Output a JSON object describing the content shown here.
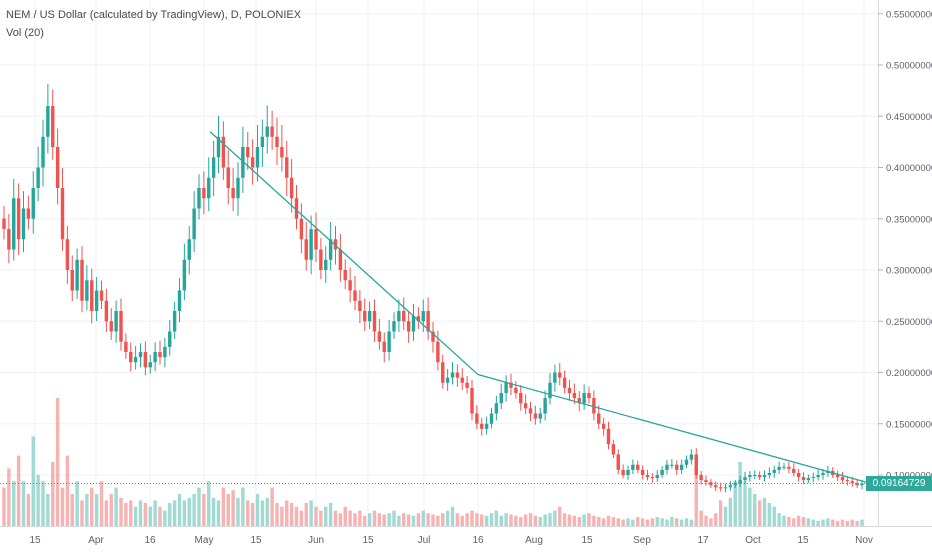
{
  "header": {
    "title": "NEM / US Dollar (calculated by TradingView), D, POLONIEX",
    "volume_label": "Vol (20)"
  },
  "price_tag": "0.09164729",
  "colors": {
    "up": "#26a69a",
    "down": "#ef5350",
    "trendline": "#26a69a",
    "grid": "#eef0f3",
    "axis_text": "#5d606b"
  },
  "chart_data": {
    "type": "candlestick",
    "x_axis_ticks": [
      "15",
      "Apr",
      "16",
      "May",
      "15",
      "Jun",
      "15",
      "Jul",
      "16",
      "Aug",
      "15",
      "Sep",
      "17",
      "Oct",
      "15",
      "Nov"
    ],
    "y_axis_ticks": [
      "0.55000000",
      "0.50000000",
      "0.45000000",
      "0.40000000",
      "0.35000000",
      "0.30000000",
      "0.25000000",
      "0.20000000",
      "0.15000000",
      "0.10000000"
    ],
    "ylim": [
      0.05,
      0.56
    ],
    "grid": true,
    "last_price": 0.09164729,
    "trendlines": [
      {
        "points": [
          [
            "May 1",
            0.435
          ],
          [
            "Jul 16",
            0.198
          ],
          [
            "Nov 1",
            0.093
          ]
        ]
      }
    ],
    "close_series": [
      0.34,
      0.32,
      0.37,
      0.33,
      0.36,
      0.35,
      0.38,
      0.4,
      0.43,
      0.46,
      0.42,
      0.38,
      0.33,
      0.3,
      0.28,
      0.31,
      0.27,
      0.29,
      0.26,
      0.28,
      0.27,
      0.25,
      0.24,
      0.26,
      0.23,
      0.22,
      0.21,
      0.215,
      0.22,
      0.205,
      0.21,
      0.22,
      0.215,
      0.225,
      0.24,
      0.26,
      0.28,
      0.31,
      0.33,
      0.36,
      0.38,
      0.37,
      0.39,
      0.41,
      0.43,
      0.4,
      0.38,
      0.37,
      0.39,
      0.42,
      0.41,
      0.4,
      0.42,
      0.43,
      0.44,
      0.43,
      0.42,
      0.41,
      0.39,
      0.37,
      0.35,
      0.33,
      0.31,
      0.34,
      0.32,
      0.3,
      0.31,
      0.33,
      0.32,
      0.3,
      0.29,
      0.28,
      0.27,
      0.26,
      0.25,
      0.26,
      0.24,
      0.23,
      0.22,
      0.24,
      0.25,
      0.26,
      0.25,
      0.24,
      0.255,
      0.25,
      0.26,
      0.24,
      0.23,
      0.21,
      0.19,
      0.195,
      0.2,
      0.195,
      0.19,
      0.185,
      0.16,
      0.15,
      0.145,
      0.15,
      0.16,
      0.17,
      0.18,
      0.19,
      0.185,
      0.18,
      0.17,
      0.165,
      0.16,
      0.155,
      0.16,
      0.175,
      0.19,
      0.2,
      0.195,
      0.185,
      0.18,
      0.175,
      0.17,
      0.18,
      0.175,
      0.16,
      0.15,
      0.145,
      0.13,
      0.12,
      0.105,
      0.1,
      0.105,
      0.11,
      0.105,
      0.1,
      0.098,
      0.097,
      0.1,
      0.105,
      0.11,
      0.11,
      0.105,
      0.11,
      0.115,
      0.12,
      0.1,
      0.095,
      0.093,
      0.09,
      0.088,
      0.087,
      0.088,
      0.09,
      0.092,
      0.095,
      0.098,
      0.1,
      0.1,
      0.098,
      0.1,
      0.102,
      0.105,
      0.108,
      0.108,
      0.106,
      0.102,
      0.098,
      0.095,
      0.097,
      0.098,
      0.1,
      0.102,
      0.104,
      0.1,
      0.098,
      0.095,
      0.094,
      0.092,
      0.09,
      0.0916
    ],
    "volume_series": [
      0.3,
      0.45,
      0.35,
      0.55,
      0.35,
      0.25,
      0.7,
      0.4,
      0.35,
      0.25,
      0.5,
      1.0,
      0.3,
      0.55,
      0.25,
      0.35,
      0.2,
      0.25,
      0.3,
      0.25,
      0.35,
      0.2,
      0.25,
      0.3,
      0.22,
      0.18,
      0.2,
      0.15,
      0.2,
      0.18,
      0.15,
      0.2,
      0.15,
      0.12,
      0.18,
      0.2,
      0.25,
      0.2,
      0.22,
      0.25,
      0.3,
      0.25,
      0.35,
      0.22,
      0.2,
      0.3,
      0.25,
      0.28,
      0.22,
      0.3,
      0.2,
      0.18,
      0.25,
      0.2,
      0.22,
      0.3,
      0.18,
      0.15,
      0.2,
      0.18,
      0.15,
      0.12,
      0.18,
      0.2,
      0.15,
      0.12,
      0.15,
      0.18,
      0.12,
      0.1,
      0.15,
      0.12,
      0.1,
      0.12,
      0.08,
      0.1,
      0.12,
      0.1,
      0.09,
      0.1,
      0.12,
      0.08,
      0.1,
      0.09,
      0.08,
      0.1,
      0.12,
      0.1,
      0.09,
      0.08,
      0.1,
      0.12,
      0.15,
      0.1,
      0.08,
      0.1,
      0.12,
      0.1,
      0.09,
      0.08,
      0.1,
      0.12,
      0.08,
      0.1,
      0.09,
      0.08,
      0.07,
      0.09,
      0.1,
      0.08,
      0.07,
      0.09,
      0.1,
      0.12,
      0.15,
      0.1,
      0.09,
      0.08,
      0.07,
      0.09,
      0.1,
      0.08,
      0.07,
      0.06,
      0.08,
      0.07,
      0.06,
      0.05,
      0.06,
      0.05,
      0.07,
      0.06,
      0.05,
      0.06,
      0.07,
      0.06,
      0.05,
      0.07,
      0.06,
      0.05,
      0.06,
      0.05,
      0.45,
      0.12,
      0.08,
      0.06,
      0.1,
      0.2,
      0.15,
      0.22,
      0.35,
      0.5,
      0.35,
      0.3,
      0.25,
      0.2,
      0.22,
      0.18,
      0.15,
      0.1,
      0.08,
      0.07,
      0.06,
      0.08,
      0.07,
      0.06,
      0.05,
      0.04,
      0.05,
      0.06,
      0.05,
      0.04,
      0.05,
      0.04,
      0.05,
      0.04,
      0.05
    ]
  }
}
